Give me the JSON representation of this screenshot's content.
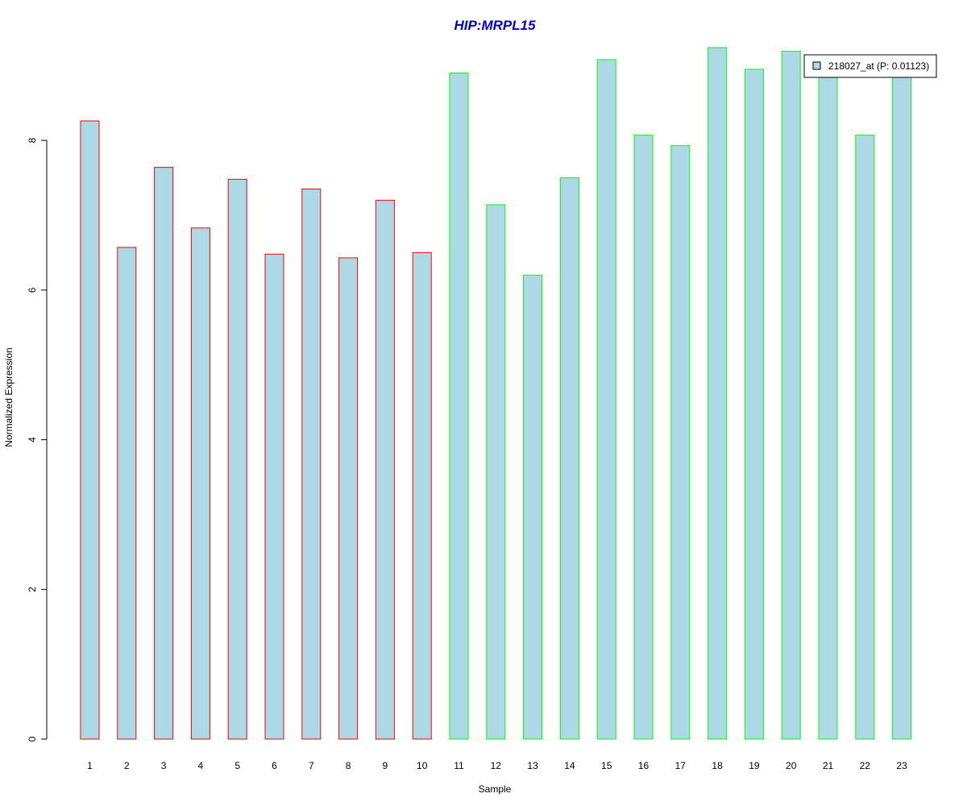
{
  "chart_data": {
    "type": "bar",
    "title": "HIP:MRPL15",
    "xlabel": "Sample",
    "ylabel": "Normalized Expression",
    "categories": [
      "1",
      "2",
      "3",
      "4",
      "5",
      "6",
      "7",
      "8",
      "9",
      "10",
      "11",
      "12",
      "13",
      "14",
      "15",
      "16",
      "17",
      "18",
      "19",
      "20",
      "21",
      "22",
      "23"
    ],
    "values": [
      8.26,
      6.57,
      7.64,
      6.83,
      7.48,
      6.48,
      7.35,
      6.43,
      7.2,
      6.5,
      8.9,
      7.14,
      6.2,
      7.5,
      9.08,
      8.07,
      7.93,
      9.24,
      8.95,
      9.19,
      8.88,
      8.07,
      8.86
    ],
    "group": [
      "red",
      "red",
      "red",
      "red",
      "red",
      "red",
      "red",
      "red",
      "red",
      "red",
      "green",
      "green",
      "green",
      "green",
      "green",
      "green",
      "green",
      "green",
      "green",
      "green",
      "green",
      "green",
      "green"
    ],
    "ylim": [
      0,
      9.24
    ],
    "yticks": [
      0,
      2,
      4,
      6,
      8
    ],
    "grid": false,
    "legend": {
      "label": "218027_at (P: 0.01123)",
      "placement": "top-right"
    },
    "colors": {
      "bar_fill": "#add8e6",
      "border_red": "#ff0000",
      "border_green": "#00ff00",
      "title": "#0000cc",
      "axis": "#000000"
    }
  }
}
